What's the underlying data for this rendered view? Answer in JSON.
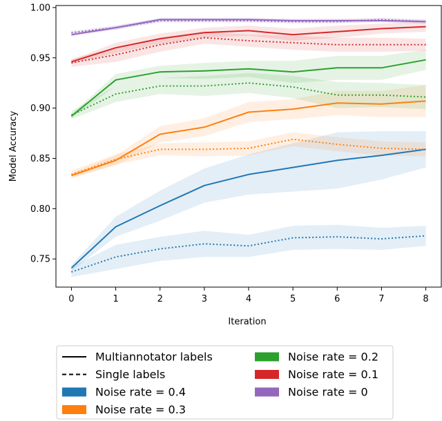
{
  "chart_data": {
    "type": "line",
    "title": "",
    "xlabel": "Iteration",
    "ylabel": "Model Accuracy",
    "x": [
      0,
      1,
      2,
      3,
      4,
      5,
      6,
      7,
      8
    ],
    "xlim": [
      -0.35,
      8.35
    ],
    "ylim": [
      0.722,
      1.002
    ],
    "xticks": [
      "0",
      "1",
      "2",
      "3",
      "4",
      "5",
      "6",
      "7",
      "8"
    ],
    "yticks": [
      "0.75",
      "0.80",
      "0.85",
      "0.90",
      "0.95",
      "1.00"
    ],
    "grid": false,
    "legend_position": "bottom",
    "series": [
      {
        "noise_rate": "0.4",
        "color": "#1f77b4",
        "multiannotator": [
          0.741,
          0.782,
          0.803,
          0.823,
          0.834,
          0.841,
          0.848,
          0.853,
          0.859
        ],
        "multiannotator_band": [
          [
            0.738,
            0.744
          ],
          [
            0.772,
            0.792
          ],
          [
            0.788,
            0.818
          ],
          [
            0.806,
            0.84
          ],
          [
            0.814,
            0.854
          ],
          [
            0.817,
            0.865
          ],
          [
            0.82,
            0.876
          ],
          [
            0.829,
            0.877
          ],
          [
            0.841,
            0.877
          ]
        ],
        "single": [
          0.737,
          0.752,
          0.76,
          0.765,
          0.763,
          0.771,
          0.772,
          0.77,
          0.773
        ],
        "single_band": [
          [
            0.732,
            0.742
          ],
          [
            0.74,
            0.764
          ],
          [
            0.748,
            0.772
          ],
          [
            0.752,
            0.778
          ],
          [
            0.752,
            0.774
          ],
          [
            0.759,
            0.783
          ],
          [
            0.76,
            0.784
          ],
          [
            0.759,
            0.781
          ],
          [
            0.763,
            0.783
          ]
        ]
      },
      {
        "noise_rate": "0.3",
        "color": "#ff7f0e",
        "multiannotator": [
          0.833,
          0.848,
          0.874,
          0.881,
          0.896,
          0.899,
          0.905,
          0.904,
          0.907
        ],
        "multiannotator_band": [
          [
            0.831,
            0.835
          ],
          [
            0.843,
            0.853
          ],
          [
            0.866,
            0.882
          ],
          [
            0.872,
            0.89
          ],
          [
            0.886,
            0.906
          ],
          [
            0.889,
            0.909
          ],
          [
            0.893,
            0.917
          ],
          [
            0.891,
            0.917
          ],
          [
            0.891,
            0.923
          ]
        ],
        "single": [
          0.834,
          0.849,
          0.859,
          0.859,
          0.86,
          0.869,
          0.864,
          0.86,
          0.859
        ],
        "single_band": [
          [
            0.83,
            0.838
          ],
          [
            0.844,
            0.854
          ],
          [
            0.853,
            0.865
          ],
          [
            0.852,
            0.866
          ],
          [
            0.853,
            0.867
          ],
          [
            0.862,
            0.876
          ],
          [
            0.857,
            0.871
          ],
          [
            0.853,
            0.867
          ],
          [
            0.852,
            0.866
          ]
        ]
      },
      {
        "noise_rate": "0.2",
        "color": "#2ca02c",
        "multiannotator": [
          0.892,
          0.928,
          0.936,
          0.937,
          0.939,
          0.936,
          0.94,
          0.94,
          0.948
        ],
        "multiannotator_band": [
          [
            0.89,
            0.894
          ],
          [
            0.922,
            0.934
          ],
          [
            0.93,
            0.942
          ],
          [
            0.929,
            0.945
          ],
          [
            0.931,
            0.947
          ],
          [
            0.925,
            0.947
          ],
          [
            0.928,
            0.952
          ],
          [
            0.928,
            0.952
          ],
          [
            0.938,
            0.958
          ]
        ],
        "single": [
          0.893,
          0.914,
          0.922,
          0.922,
          0.925,
          0.921,
          0.913,
          0.913,
          0.911
        ],
        "single_band": [
          [
            0.889,
            0.897
          ],
          [
            0.906,
            0.922
          ],
          [
            0.914,
            0.93
          ],
          [
            0.912,
            0.932
          ],
          [
            0.915,
            0.935
          ],
          [
            0.91,
            0.932
          ],
          [
            0.9,
            0.926
          ],
          [
            0.901,
            0.925
          ],
          [
            0.899,
            0.923
          ]
        ]
      },
      {
        "noise_rate": "0.1",
        "color": "#d62728",
        "multiannotator": [
          0.946,
          0.96,
          0.969,
          0.975,
          0.977,
          0.973,
          0.976,
          0.979,
          0.981
        ],
        "multiannotator_band": [
          [
            0.944,
            0.948
          ],
          [
            0.955,
            0.965
          ],
          [
            0.964,
            0.974
          ],
          [
            0.97,
            0.98
          ],
          [
            0.972,
            0.982
          ],
          [
            0.967,
            0.979
          ],
          [
            0.97,
            0.982
          ],
          [
            0.974,
            0.984
          ],
          [
            0.976,
            0.986
          ]
        ],
        "single": [
          0.945,
          0.953,
          0.963,
          0.97,
          0.967,
          0.965,
          0.963,
          0.963,
          0.963
        ],
        "single_band": [
          [
            0.941,
            0.949
          ],
          [
            0.946,
            0.96
          ],
          [
            0.956,
            0.97
          ],
          [
            0.964,
            0.976
          ],
          [
            0.961,
            0.973
          ],
          [
            0.958,
            0.972
          ],
          [
            0.956,
            0.97
          ],
          [
            0.956,
            0.97
          ],
          [
            0.957,
            0.969
          ]
        ]
      },
      {
        "noise_rate": "0",
        "color": "#9467bd",
        "multiannotator": [
          0.973,
          0.98,
          0.988,
          0.988,
          0.988,
          0.987,
          0.987,
          0.987,
          0.986
        ],
        "multiannotator_band": [
          [
            0.971,
            0.975
          ],
          [
            0.978,
            0.982
          ],
          [
            0.986,
            0.99
          ],
          [
            0.986,
            0.99
          ],
          [
            0.986,
            0.99
          ],
          [
            0.985,
            0.989
          ],
          [
            0.985,
            0.989
          ],
          [
            0.985,
            0.989
          ],
          [
            0.984,
            0.988
          ]
        ],
        "single": [
          0.975,
          0.98,
          0.987,
          0.987,
          0.987,
          0.986,
          0.986,
          0.988,
          0.986
        ],
        "single_band": [
          [
            0.973,
            0.977
          ],
          [
            0.978,
            0.982
          ],
          [
            0.985,
            0.989
          ],
          [
            0.985,
            0.989
          ],
          [
            0.985,
            0.989
          ],
          [
            0.984,
            0.988
          ],
          [
            0.984,
            0.988
          ],
          [
            0.986,
            0.99
          ],
          [
            0.984,
            0.988
          ]
        ]
      }
    ],
    "legend": {
      "line_entries": [
        {
          "label": "Multiannotator labels",
          "style": "solid"
        },
        {
          "label": "Single labels",
          "style": "dashed"
        }
      ],
      "color_entries": [
        {
          "label": "Noise rate = 0.4",
          "color": "#1f77b4"
        },
        {
          "label": "Noise rate = 0.3",
          "color": "#ff7f0e"
        },
        {
          "label": "Noise rate = 0.2",
          "color": "#2ca02c"
        },
        {
          "label": "Noise rate = 0.1",
          "color": "#d62728"
        },
        {
          "label": "Noise rate = 0",
          "color": "#9467bd"
        }
      ]
    }
  }
}
